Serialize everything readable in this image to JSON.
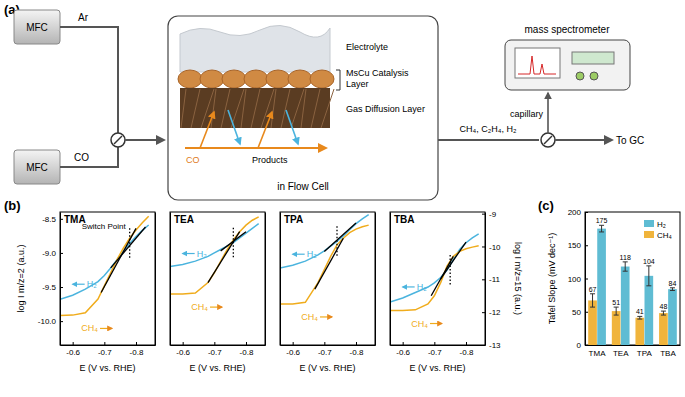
{
  "panel_labels": [
    "(a)",
    "(b)",
    "(c)"
  ],
  "diagram": {
    "mfc": [
      "MFC",
      "MFC"
    ],
    "gases": [
      "Ar",
      "CO"
    ],
    "layers": [
      "Electrolyte",
      "MsCu Catalysis Layer",
      "Gas Diffusion Layer"
    ],
    "feed": "CO",
    "products": "Products",
    "cell": "in Flow Cell",
    "outlet": "CH₄, C₂H₄, H₂",
    "instrument": "mass spectrometer",
    "capillary": "capillary",
    "exit": "To GC"
  },
  "chart_data": [
    {
      "type": "line",
      "title": "TMA",
      "xlabel": "E (V vs. RHE)",
      "ylabel": "log I m/z=2 (a.u.)",
      "xlim": [
        -0.56,
        -0.86
      ],
      "xticks": [
        -0.6,
        -0.7,
        -0.8
      ],
      "ylim": [
        -10.35,
        -8.4
      ],
      "yticks": [
        -8.5,
        {
          "value": -9,
          "label": "-9.0"
        },
        -9.5,
        {
          "value": -10,
          "label": "-10.0"
        }
      ],
      "y2lim": [
        -13,
        -8.95
      ],
      "switch_point": -0.78,
      "annotations": [
        "Switch Point"
      ],
      "x": [
        -0.56,
        -0.6,
        -0.64,
        -0.68,
        -0.7,
        -0.72,
        -0.74,
        -0.76,
        -0.78,
        -0.8,
        -0.82,
        -0.84
      ],
      "series": [
        {
          "name": "H₂",
          "color": "#4bb4de",
          "values": [
            -9.68,
            -9.62,
            -9.53,
            -9.42,
            -9.33,
            -9.22,
            -9.1,
            -8.98,
            -8.86,
            -8.76,
            -8.67,
            -8.59
          ]
        },
        {
          "name": "CH₄",
          "color": "#f0ac1c",
          "axis": "y2",
          "values": [
            -12.1,
            -12.09,
            -12.02,
            -11.6,
            -11.2,
            -10.8,
            -10.4,
            -10.05,
            -9.75,
            -9.5,
            -9.28,
            -9.08
          ]
        },
        {
          "color": "#000000",
          "axis": "y2",
          "x": [
            -0.69,
            -0.8
          ],
          "values": [
            -11.4,
            -9.45
          ]
        },
        {
          "color": "#000000",
          "x": [
            -0.72,
            -0.83
          ],
          "values": [
            -9.22,
            -8.62
          ]
        }
      ]
    },
    {
      "type": "line",
      "title": "TEA",
      "xlabel": "E (V vs. RHE)",
      "xlim": [
        -0.56,
        -0.86
      ],
      "xticks": [
        -0.6,
        -0.7,
        -0.8
      ],
      "ylim": [
        -10.35,
        -8.4
      ],
      "y2lim": [
        -13,
        -8.95
      ],
      "switch_point": -0.76,
      "x": [
        -0.56,
        -0.6,
        -0.64,
        -0.68,
        -0.7,
        -0.72,
        -0.74,
        -0.76,
        -0.78,
        -0.8,
        -0.82,
        -0.84
      ],
      "series": [
        {
          "name": "H₂",
          "color": "#4bb4de",
          "values": [
            -9.2,
            -9.17,
            -9.12,
            -9.05,
            -9.0,
            -8.95,
            -8.9,
            -8.85,
            -8.78,
            -8.71,
            -8.64,
            -8.57
          ]
        },
        {
          "name": "CH₄",
          "color": "#f0ac1c",
          "axis": "y2",
          "values": [
            -11.45,
            -11.45,
            -11.42,
            -11.1,
            -10.8,
            -10.45,
            -10.1,
            -9.8,
            -9.55,
            -9.35,
            -9.2,
            -9.1
          ]
        },
        {
          "color": "#000000",
          "axis": "y2",
          "x": [
            -0.68,
            -0.78
          ],
          "values": [
            -11.1,
            -9.55
          ]
        },
        {
          "color": "#000000",
          "x": [
            -0.72,
            -0.8
          ],
          "values": [
            -8.97,
            -8.69
          ]
        }
      ]
    },
    {
      "type": "line",
      "title": "TPA",
      "xlabel": "E (V vs. RHE)",
      "xlim": [
        -0.56,
        -0.86
      ],
      "xticks": [
        -0.6,
        -0.7,
        -0.8
      ],
      "ylim": [
        -10.35,
        -8.4
      ],
      "y2lim": [
        -13,
        -8.95
      ],
      "switch_point": -0.74,
      "x": [
        -0.56,
        -0.6,
        -0.64,
        -0.68,
        -0.7,
        -0.72,
        -0.74,
        -0.76,
        -0.78,
        -0.8,
        -0.82,
        -0.84
      ],
      "series": [
        {
          "name": "H₂",
          "color": "#4bb4de",
          "values": [
            -9.22,
            -9.18,
            -9.12,
            -9.03,
            -8.97,
            -8.9,
            -8.83,
            -8.75,
            -8.66,
            -8.57,
            -8.5,
            -8.44
          ]
        },
        {
          "name": "CH₄",
          "color": "#f0ac1c",
          "axis": "y2",
          "values": [
            -11.75,
            -11.75,
            -11.7,
            -11.1,
            -10.7,
            -10.3,
            -9.95,
            -9.75,
            -9.58,
            -9.47,
            -9.4,
            -9.35
          ]
        },
        {
          "color": "#000000",
          "axis": "y2",
          "x": [
            -0.67,
            -0.76
          ],
          "values": [
            -11.3,
            -9.75
          ]
        },
        {
          "color": "#000000",
          "x": [
            -0.7,
            -0.8
          ],
          "values": [
            -8.98,
            -8.56
          ]
        }
      ]
    },
    {
      "type": "line",
      "title": "TBA",
      "xlabel": "E (V vs. RHE)",
      "y2label": "log I m/z=15 (a.u.)",
      "xlim": [
        -0.56,
        -0.86
      ],
      "xticks": [
        -0.6,
        -0.7,
        -0.8
      ],
      "ylim": [
        -10.35,
        -8.4
      ],
      "y2lim": [
        -13,
        -8.95
      ],
      "y2ticks": [
        -9,
        -10,
        -11,
        -12,
        -13
      ],
      "switch_point": -0.75,
      "x": [
        -0.56,
        -0.6,
        -0.64,
        -0.68,
        -0.7,
        -0.72,
        -0.74,
        -0.76,
        -0.78,
        -0.8,
        -0.82,
        -0.84
      ],
      "series": [
        {
          "name": "H₂",
          "color": "#4bb4de",
          "values": [
            -9.72,
            -9.66,
            -9.58,
            -9.5,
            -9.44,
            -9.36,
            -9.25,
            -9.1,
            -8.95,
            -8.85,
            -8.78,
            -8.72
          ]
        },
        {
          "name": "CH₄",
          "color": "#f0ac1c",
          "axis": "y2",
          "values": [
            -11.95,
            -11.95,
            -11.93,
            -11.75,
            -11.5,
            -11.1,
            -10.6,
            -10.3,
            -10.15,
            -10.07,
            -10.02,
            -9.98
          ]
        },
        {
          "color": "#000000",
          "axis": "y2",
          "x": [
            -0.69,
            -0.76
          ],
          "values": [
            -11.5,
            -10.3
          ]
        },
        {
          "color": "#000000",
          "x": [
            -0.72,
            -0.8
          ],
          "values": [
            -9.38,
            -8.84
          ]
        }
      ]
    },
    {
      "type": "bar",
      "ylabel": "Tafel Slope (mV dec⁻¹)",
      "categories": [
        "TMA",
        "TEA",
        "TPA",
        "TBA"
      ],
      "ylim": [
        0,
        200
      ],
      "yticks": [
        0,
        50,
        100,
        150,
        200
      ],
      "data_labels": true,
      "legend": "top-right",
      "series": [
        {
          "name": "CH₄",
          "color": "#f0b43c",
          "values": [
            67,
            51,
            41,
            48
          ],
          "errors": [
            10,
            6,
            2,
            3
          ]
        },
        {
          "name": "H₂",
          "color": "#5fbcd3",
          "values": [
            175,
            118,
            104,
            84
          ],
          "errors": [
            5,
            7,
            15,
            2
          ]
        }
      ]
    }
  ]
}
